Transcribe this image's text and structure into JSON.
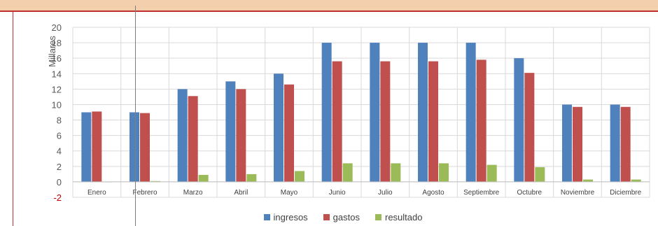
{
  "chart_data": {
    "type": "bar",
    "title": "",
    "xlabel": "",
    "ylabel": "Millares",
    "ylim": [
      -2,
      20
    ],
    "yticks": [
      "-2",
      "0",
      "2",
      "4",
      "6",
      "8",
      "10",
      "12",
      "14",
      "16",
      "18",
      "20"
    ],
    "grid": true,
    "legend_position": "bottom",
    "categories": [
      "Enero",
      "Febrero",
      "Marzo",
      "Abril",
      "Mayo",
      "Junio",
      "Julio",
      "Agosto",
      "Septiembre",
      "Octubre",
      "Noviembre",
      "Diciembre"
    ],
    "series": [
      {
        "name": "ingresos",
        "color": "#4f81bd",
        "values": [
          9,
          9,
          12,
          13,
          14,
          18,
          18,
          18,
          18,
          16,
          10,
          10
        ]
      },
      {
        "name": "gastos",
        "color": "#c0504d",
        "values": [
          9.1,
          8.9,
          11.1,
          12,
          12.6,
          15.6,
          15.6,
          15.6,
          15.8,
          14.1,
          9.7,
          9.7
        ]
      },
      {
        "name": "resultado",
        "color": "#9bbb59",
        "values": [
          0,
          0.1,
          0.9,
          1.0,
          1.4,
          2.4,
          2.4,
          2.4,
          2.2,
          1.9,
          0.3,
          0.3
        ]
      }
    ],
    "negative_tick_color": "#c00000"
  }
}
